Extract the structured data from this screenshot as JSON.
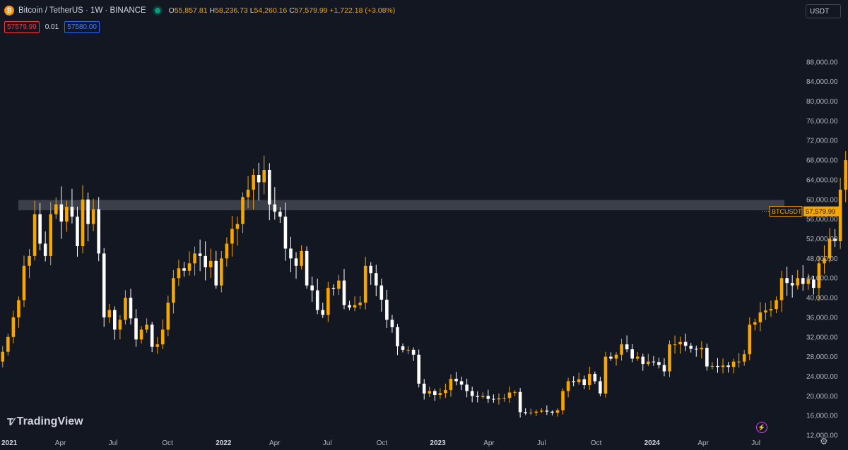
{
  "header": {
    "symbol_title": "Bitcoin / TetherUS · 1W · BINANCE",
    "open_label": "O",
    "open": "55,857.81",
    "high_label": "H",
    "high": "58,236.73",
    "low_label": "L",
    "low": "54,260.16",
    "close_label": "C",
    "close": "57,579.99",
    "change": "+1,722.18 (+3.08%)"
  },
  "prices": {
    "sell": "57579.99",
    "spread": "0.01",
    "buy": "57580.00"
  },
  "currency": "USDT",
  "branding": "TradingView",
  "colors": {
    "up": "#f7a600",
    "down": "#ffffff",
    "background": "#131722",
    "axis_text": "#b2b5be",
    "zone": "#5d606b"
  },
  "chart_data": {
    "type": "candlestick",
    "timeframe": "1W",
    "x_labels": [
      "2021",
      "Apr",
      "Jul",
      "Oct",
      "2022",
      "Apr",
      "Jul",
      "Oct",
      "2023",
      "Apr",
      "Jul",
      "Oct",
      "2024",
      "Apr",
      "Jul"
    ],
    "y_ticks": [
      "12,000.00",
      "16,000.00",
      "20,000.00",
      "24,000.00",
      "28,000.00",
      "32,000.00",
      "36,000.00",
      "40,000.00",
      "44,000.00",
      "48,000.00",
      "52,000.00",
      "56,000.00",
      "60,000.00",
      "64,000.00",
      "68,000.00",
      "72,000.00",
      "76,000.00",
      "80,000.00",
      "84,000.00",
      "88,000.00"
    ],
    "y_range": [
      10000,
      93000
    ],
    "last_price_label": {
      "symbol": "BTCUSDT",
      "price": "57,579.99",
      "value": 57579.99
    },
    "support_resistance_zone": [
      57800,
      59900
    ],
    "weekly_closes": [
      29000,
      32000,
      36000,
      39500,
      46500,
      48500,
      57000,
      51000,
      48500,
      57000,
      59000,
      55500,
      58500,
      56500,
      50500,
      60000,
      55000,
      58000,
      49000,
      36000,
      37500,
      33500,
      35500,
      40000,
      35800,
      31500,
      33500,
      34500,
      30000,
      30500,
      33500,
      39000,
      44000,
      46000,
      45500,
      47000,
      49000,
      48500,
      46200,
      47500,
      42500,
      48000,
      51000,
      54000,
      55000,
      60500,
      62000,
      65000,
      63500,
      66000,
      59000,
      57500,
      56500,
      50000,
      48000,
      46500,
      49500,
      42500,
      41500,
      37500,
      36500,
      42000,
      41800,
      43500,
      38500,
      38000,
      38500,
      39000,
      46500,
      45000,
      42500,
      39600,
      35500,
      34000,
      30100,
      29400,
      29400,
      28400,
      22500,
      20500,
      21000,
      20200,
      20600,
      21200,
      23500,
      23000,
      22300,
      21000,
      20000,
      19800,
      20000,
      19400,
      19300,
      19500,
      19600,
      20700,
      20800,
      16700,
      16500,
      16600,
      16800,
      17000,
      16800,
      16600,
      17100,
      21000,
      23000,
      22800,
      23400,
      22200,
      24500,
      23000,
      20500,
      28000,
      27600,
      28400,
      30500,
      29500,
      27600,
      28000,
      26500,
      27000,
      26900,
      26300,
      25000,
      30500,
      30500,
      31000,
      30200,
      29600,
      29500,
      29800,
      26000,
      26100,
      25900,
      26200,
      25900,
      27000,
      27000,
      28500,
      34500,
      35000,
      37000,
      37400,
      37700,
      39500,
      44000,
      43000,
      42500,
      44000,
      42800,
      43700,
      42000,
      47000,
      48000,
      52000,
      51500,
      62000,
      68000,
      70500,
      65500,
      70500,
      68000,
      69000,
      64000,
      63000,
      63500,
      64000,
      62900,
      61500,
      67000,
      67000,
      68500,
      71000,
      69000,
      66000,
      64000,
      60000,
      55800,
      57580
    ]
  }
}
